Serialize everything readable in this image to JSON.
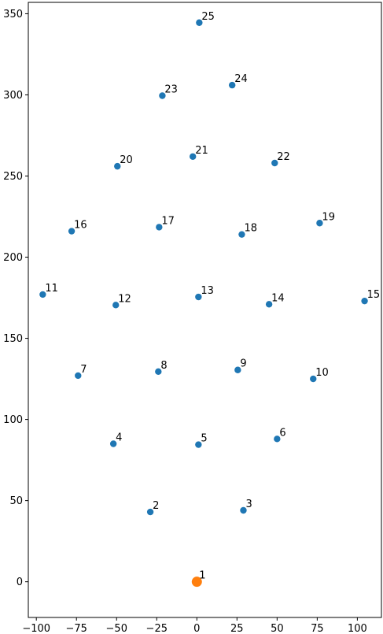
{
  "chart_data": {
    "type": "scatter",
    "title": "",
    "xlabel": "",
    "ylabel": "",
    "xlim": [
      -105,
      115
    ],
    "ylim": [
      -22,
      357
    ],
    "grid": false,
    "x_ticks": [
      -100,
      -75,
      -50,
      -25,
      0,
      25,
      50,
      75,
      100
    ],
    "y_ticks": [
      0,
      50,
      100,
      150,
      200,
      250,
      300,
      350
    ],
    "colors": {
      "default": "#1f77b4",
      "highlight": "#ff7f0e"
    },
    "points": [
      {
        "label": "1",
        "x": 0,
        "y": 0,
        "highlight": true
      },
      {
        "label": "2",
        "x": -29,
        "y": 43
      },
      {
        "label": "3",
        "x": 29,
        "y": 44
      },
      {
        "label": "4",
        "x": -52,
        "y": 85
      },
      {
        "label": "5",
        "x": 1,
        "y": 84.5
      },
      {
        "label": "6",
        "x": 50,
        "y": 88
      },
      {
        "label": "7",
        "x": -74,
        "y": 127
      },
      {
        "label": "8",
        "x": -24,
        "y": 129.5
      },
      {
        "label": "9",
        "x": 25.5,
        "y": 130.5
      },
      {
        "label": "10",
        "x": 72.5,
        "y": 125
      },
      {
        "label": "11",
        "x": -96,
        "y": 177
      },
      {
        "label": "12",
        "x": -50.5,
        "y": 170.5
      },
      {
        "label": "13",
        "x": 1,
        "y": 175.5
      },
      {
        "label": "14",
        "x": 45,
        "y": 171
      },
      {
        "label": "15",
        "x": 104.5,
        "y": 173
      },
      {
        "label": "16",
        "x": -78,
        "y": 216
      },
      {
        "label": "17",
        "x": -23.5,
        "y": 218.5
      },
      {
        "label": "18",
        "x": 28,
        "y": 214
      },
      {
        "label": "19",
        "x": 76.5,
        "y": 221
      },
      {
        "label": "20",
        "x": -49.5,
        "y": 256
      },
      {
        "label": "21",
        "x": -2.5,
        "y": 262
      },
      {
        "label": "22",
        "x": 48.5,
        "y": 258
      },
      {
        "label": "23",
        "x": -21.5,
        "y": 299.5
      },
      {
        "label": "24",
        "x": 22,
        "y": 306
      },
      {
        "label": "25",
        "x": 1.5,
        "y": 344.5
      }
    ]
  }
}
